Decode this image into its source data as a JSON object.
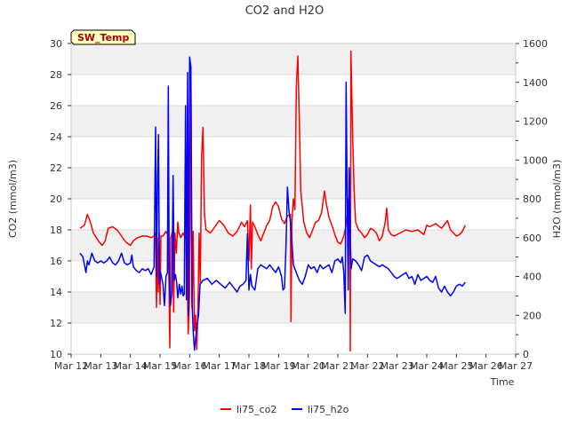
{
  "chart_data": {
    "type": "line",
    "title": "CO2 and H2O",
    "xlabel": "Time",
    "ylabel_left": "CO2 (mmol/m3)",
    "ylabel_right": "H2O (mmol/m3)",
    "badge": "SW_Temp",
    "x_range": [
      "Mar 12",
      "Mar 27"
    ],
    "x_ticks": [
      "Mar 12",
      "Mar 13",
      "Mar 14",
      "Mar 15",
      "Mar 16",
      "Mar 17",
      "Mar 18",
      "Mar 19",
      "Mar 20",
      "Mar 21",
      "Mar 22",
      "Mar 23",
      "Mar 24",
      "Mar 25",
      "Mar 26",
      "Mar 27"
    ],
    "ylim_left": [
      10,
      30
    ],
    "yticks_left": [
      10,
      12,
      14,
      16,
      18,
      20,
      22,
      24,
      26,
      28,
      30
    ],
    "ylim_right": [
      0,
      1600
    ],
    "yticks_right": [
      0,
      200,
      400,
      600,
      800,
      1000,
      1200,
      1400,
      1600
    ],
    "grid": true,
    "legend_position": "bottom",
    "series": [
      {
        "name": "li75_co2",
        "axis": "left",
        "color": "#ff0000",
        "points": [
          [
            12.3,
            18.1
          ],
          [
            12.45,
            18.3
          ],
          [
            12.55,
            19.0
          ],
          [
            12.65,
            18.5
          ],
          [
            12.75,
            17.8
          ],
          [
            12.85,
            17.5
          ],
          [
            12.95,
            17.2
          ],
          [
            13.05,
            17.0
          ],
          [
            13.15,
            17.3
          ],
          [
            13.25,
            18.1
          ],
          [
            13.4,
            18.2
          ],
          [
            13.55,
            18.0
          ],
          [
            13.7,
            17.6
          ],
          [
            13.85,
            17.2
          ],
          [
            14.0,
            17.0
          ],
          [
            14.1,
            17.3
          ],
          [
            14.25,
            17.5
          ],
          [
            14.4,
            17.6
          ],
          [
            14.55,
            17.6
          ],
          [
            14.7,
            17.5
          ],
          [
            14.8,
            17.6
          ],
          [
            14.85,
            17.8
          ],
          [
            14.88,
            13.0
          ],
          [
            14.91,
            17.5
          ],
          [
            14.94,
            14.0
          ],
          [
            14.97,
            17.8
          ],
          [
            15.0,
            13.2
          ],
          [
            15.03,
            17.6
          ],
          [
            15.1,
            17.6
          ],
          [
            15.2,
            17.9
          ],
          [
            15.27,
            17.7
          ],
          [
            15.3,
            15.0
          ],
          [
            15.33,
            10.4
          ],
          [
            15.36,
            17.5
          ],
          [
            15.42,
            17.9
          ],
          [
            15.46,
            12.7
          ],
          [
            15.5,
            17.8
          ],
          [
            15.55,
            16.5
          ],
          [
            15.6,
            18.5
          ],
          [
            15.64,
            17.8
          ],
          [
            15.7,
            17.5
          ],
          [
            15.78,
            17.8
          ],
          [
            15.85,
            17.5
          ],
          [
            15.9,
            17.5
          ],
          [
            15.95,
            11.3
          ],
          [
            16.0,
            14.0
          ],
          [
            16.04,
            28.1
          ],
          [
            16.08,
            13.0
          ],
          [
            16.12,
            17.9
          ],
          [
            16.16,
            11.5
          ],
          [
            16.2,
            12.5
          ],
          [
            16.24,
            10.3
          ],
          [
            16.28,
            13.0
          ],
          [
            16.32,
            17.8
          ],
          [
            16.36,
            14.5
          ],
          [
            16.4,
            22.6
          ],
          [
            16.45,
            24.6
          ],
          [
            16.5,
            19.0
          ],
          [
            16.55,
            18.0
          ],
          [
            16.7,
            17.8
          ],
          [
            16.85,
            18.2
          ],
          [
            17.0,
            18.6
          ],
          [
            17.15,
            18.3
          ],
          [
            17.3,
            17.8
          ],
          [
            17.45,
            17.6
          ],
          [
            17.6,
            17.9
          ],
          [
            17.75,
            18.5
          ],
          [
            17.85,
            18.2
          ],
          [
            17.95,
            18.6
          ],
          [
            18.0,
            16.0
          ],
          [
            18.05,
            19.6
          ],
          [
            18.08,
            15.5
          ],
          [
            18.12,
            18.5
          ],
          [
            18.2,
            18.2
          ],
          [
            18.3,
            17.7
          ],
          [
            18.4,
            17.3
          ],
          [
            18.5,
            17.8
          ],
          [
            18.6,
            18.3
          ],
          [
            18.7,
            18.6
          ],
          [
            18.8,
            19.5
          ],
          [
            18.9,
            19.8
          ],
          [
            19.0,
            19.5
          ],
          [
            19.1,
            18.7
          ],
          [
            19.2,
            18.4
          ],
          [
            19.3,
            18.9
          ],
          [
            19.4,
            19.0
          ],
          [
            19.42,
            12.1
          ],
          [
            19.45,
            18.5
          ],
          [
            19.5,
            20.0
          ],
          [
            19.55,
            19.3
          ],
          [
            19.6,
            27.2
          ],
          [
            19.65,
            29.2
          ],
          [
            19.7,
            25.0
          ],
          [
            19.75,
            20.5
          ],
          [
            19.85,
            18.5
          ],
          [
            19.95,
            17.8
          ],
          [
            20.05,
            17.5
          ],
          [
            20.15,
            18.0
          ],
          [
            20.25,
            18.5
          ],
          [
            20.35,
            18.6
          ],
          [
            20.45,
            19.1
          ],
          [
            20.55,
            20.5
          ],
          [
            20.6,
            19.8
          ],
          [
            20.7,
            18.8
          ],
          [
            20.8,
            18.3
          ],
          [
            20.9,
            17.7
          ],
          [
            21.0,
            17.2
          ],
          [
            21.1,
            17.1
          ],
          [
            21.2,
            17.6
          ],
          [
            21.3,
            18.5
          ],
          [
            21.35,
            20.0
          ],
          [
            21.38,
            17.5
          ],
          [
            21.4,
            21.4
          ],
          [
            21.42,
            10.2
          ],
          [
            21.44,
            29.5
          ],
          [
            21.5,
            24.0
          ],
          [
            21.55,
            20.5
          ],
          [
            21.6,
            18.5
          ],
          [
            21.7,
            18.0
          ],
          [
            21.8,
            17.8
          ],
          [
            21.9,
            17.5
          ],
          [
            22.0,
            17.7
          ],
          [
            22.1,
            18.1
          ],
          [
            22.2,
            18.0
          ],
          [
            22.3,
            17.8
          ],
          [
            22.4,
            17.3
          ],
          [
            22.5,
            17.6
          ],
          [
            22.6,
            18.5
          ],
          [
            22.65,
            19.4
          ],
          [
            22.7,
            18.0
          ],
          [
            22.8,
            17.7
          ],
          [
            22.9,
            17.6
          ],
          [
            23.1,
            17.8
          ],
          [
            23.3,
            18.0
          ],
          [
            23.5,
            17.9
          ],
          [
            23.7,
            18.0
          ],
          [
            23.9,
            17.7
          ],
          [
            24.0,
            18.3
          ],
          [
            24.1,
            18.2
          ],
          [
            24.3,
            18.4
          ],
          [
            24.5,
            18.1
          ],
          [
            24.7,
            18.6
          ],
          [
            24.8,
            18.0
          ],
          [
            24.9,
            17.8
          ],
          [
            25.0,
            17.6
          ],
          [
            25.1,
            17.7
          ],
          [
            25.2,
            17.9
          ],
          [
            25.3,
            18.3
          ]
        ]
      },
      {
        "name": "li75_h2o",
        "axis": "right",
        "color": "#0000ff",
        "points": [
          [
            12.3,
            520
          ],
          [
            12.4,
            500
          ],
          [
            12.5,
            420
          ],
          [
            12.55,
            480
          ],
          [
            12.6,
            460
          ],
          [
            12.7,
            520
          ],
          [
            12.8,
            480
          ],
          [
            12.9,
            470
          ],
          [
            13.0,
            480
          ],
          [
            13.1,
            470
          ],
          [
            13.2,
            480
          ],
          [
            13.3,
            500
          ],
          [
            13.4,
            470
          ],
          [
            13.5,
            460
          ],
          [
            13.6,
            480
          ],
          [
            13.7,
            520
          ],
          [
            13.8,
            470
          ],
          [
            13.9,
            460
          ],
          [
            14.0,
            470
          ],
          [
            14.05,
            510
          ],
          [
            14.1,
            450
          ],
          [
            14.2,
            430
          ],
          [
            14.3,
            420
          ],
          [
            14.4,
            440
          ],
          [
            14.5,
            430
          ],
          [
            14.6,
            440
          ],
          [
            14.7,
            410
          ],
          [
            14.8,
            450
          ],
          [
            14.85,
            1170
          ],
          [
            14.88,
            400
          ],
          [
            14.92,
            920
          ],
          [
            14.95,
            1130
          ],
          [
            14.98,
            360
          ],
          [
            15.02,
            420
          ],
          [
            15.1,
            360
          ],
          [
            15.15,
            250
          ],
          [
            15.2,
            400
          ],
          [
            15.25,
            420
          ],
          [
            15.28,
            1380
          ],
          [
            15.31,
            400
          ],
          [
            15.35,
            250
          ],
          [
            15.4,
            320
          ],
          [
            15.44,
            920
          ],
          [
            15.48,
            380
          ],
          [
            15.52,
            410
          ],
          [
            15.56,
            370
          ],
          [
            15.6,
            290
          ],
          [
            15.65,
            360
          ],
          [
            15.7,
            310
          ],
          [
            15.74,
            350
          ],
          [
            15.78,
            300
          ],
          [
            15.82,
            310
          ],
          [
            15.86,
            1280
          ],
          [
            15.89,
            280
          ],
          [
            15.93,
            1450
          ],
          [
            15.96,
            200
          ],
          [
            16.0,
            1530
          ],
          [
            16.04,
            1480
          ],
          [
            16.08,
            270
          ],
          [
            16.12,
            120
          ],
          [
            16.16,
            20
          ],
          [
            16.2,
            80
          ],
          [
            16.25,
            150
          ],
          [
            16.3,
            200
          ],
          [
            16.35,
            360
          ],
          [
            16.45,
            380
          ],
          [
            16.6,
            390
          ],
          [
            16.75,
            360
          ],
          [
            16.9,
            380
          ],
          [
            17.05,
            360
          ],
          [
            17.2,
            340
          ],
          [
            17.35,
            370
          ],
          [
            17.5,
            340
          ],
          [
            17.6,
            320
          ],
          [
            17.7,
            350
          ],
          [
            17.8,
            360
          ],
          [
            17.9,
            380
          ],
          [
            17.95,
            620
          ],
          [
            18.0,
            330
          ],
          [
            18.05,
            410
          ],
          [
            18.1,
            350
          ],
          [
            18.2,
            330
          ],
          [
            18.3,
            440
          ],
          [
            18.4,
            460
          ],
          [
            18.5,
            450
          ],
          [
            18.6,
            440
          ],
          [
            18.7,
            460
          ],
          [
            18.8,
            440
          ],
          [
            18.9,
            420
          ],
          [
            19.0,
            450
          ],
          [
            19.1,
            400
          ],
          [
            19.15,
            330
          ],
          [
            19.2,
            340
          ],
          [
            19.25,
            560
          ],
          [
            19.3,
            860
          ],
          [
            19.35,
            740
          ],
          [
            19.4,
            680
          ],
          [
            19.45,
            580
          ],
          [
            19.5,
            460
          ],
          [
            19.6,
            420
          ],
          [
            19.7,
            380
          ],
          [
            19.8,
            360
          ],
          [
            19.9,
            400
          ],
          [
            20.0,
            460
          ],
          [
            20.1,
            440
          ],
          [
            20.2,
            450
          ],
          [
            20.3,
            420
          ],
          [
            20.4,
            460
          ],
          [
            20.5,
            440
          ],
          [
            20.6,
            450
          ],
          [
            20.7,
            460
          ],
          [
            20.8,
            420
          ],
          [
            20.9,
            480
          ],
          [
            21.0,
            490
          ],
          [
            21.1,
            470
          ],
          [
            21.15,
            500
          ],
          [
            21.2,
            420
          ],
          [
            21.25,
            210
          ],
          [
            21.28,
            1400
          ],
          [
            21.31,
            900
          ],
          [
            21.35,
            330
          ],
          [
            21.38,
            960
          ],
          [
            21.42,
            580
          ],
          [
            21.45,
            440
          ],
          [
            21.5,
            490
          ],
          [
            21.6,
            480
          ],
          [
            21.7,
            460
          ],
          [
            21.8,
            430
          ],
          [
            21.9,
            500
          ],
          [
            22.0,
            510
          ],
          [
            22.1,
            480
          ],
          [
            22.2,
            470
          ],
          [
            22.3,
            460
          ],
          [
            22.4,
            450
          ],
          [
            22.5,
            460
          ],
          [
            22.6,
            450
          ],
          [
            22.7,
            440
          ],
          [
            22.8,
            420
          ],
          [
            22.9,
            400
          ],
          [
            23.0,
            390
          ],
          [
            23.1,
            400
          ],
          [
            23.2,
            410
          ],
          [
            23.3,
            420
          ],
          [
            23.4,
            390
          ],
          [
            23.5,
            400
          ],
          [
            23.6,
            360
          ],
          [
            23.7,
            410
          ],
          [
            23.8,
            380
          ],
          [
            23.9,
            390
          ],
          [
            24.0,
            400
          ],
          [
            24.1,
            380
          ],
          [
            24.2,
            370
          ],
          [
            24.3,
            400
          ],
          [
            24.4,
            340
          ],
          [
            24.5,
            320
          ],
          [
            24.6,
            350
          ],
          [
            24.7,
            320
          ],
          [
            24.8,
            300
          ],
          [
            24.9,
            320
          ],
          [
            25.0,
            350
          ],
          [
            25.1,
            360
          ],
          [
            25.2,
            350
          ],
          [
            25.3,
            370
          ]
        ]
      }
    ]
  }
}
